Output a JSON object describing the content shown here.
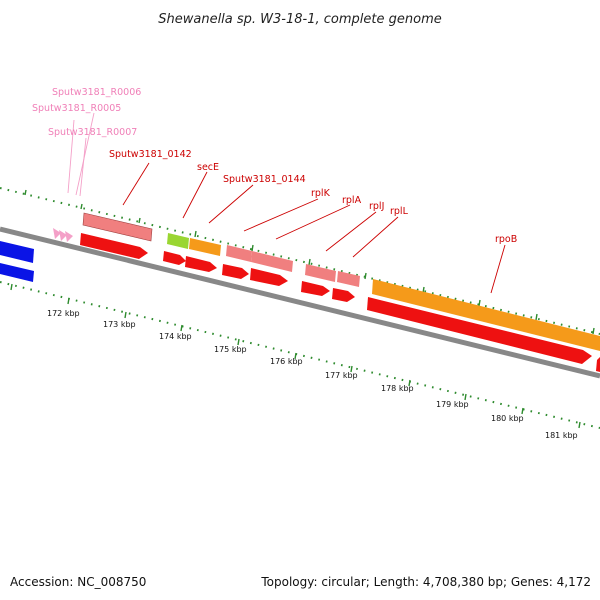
{
  "title": "Shewanella sp. W3-18-1, complete genome",
  "footer": {
    "accession": "Accession: NC_008750",
    "summary": "Topology: circular; Length: 4,708,380 bp; Genes: 4,172"
  },
  "scale_labels": [
    "172 kbp",
    "173 kbp",
    "174 kbp",
    "175 kbp",
    "176 kbp",
    "177 kbp",
    "178 kbp",
    "179 kbp",
    "180 kbp",
    "181 kbp"
  ],
  "gene_labels": {
    "r0006": "Sputw3181_R0006",
    "r0005": "Sputw3181_R0005",
    "r0007": "Sputw3181_R0007",
    "g0142": "Sputw3181_0142",
    "secE": "secE",
    "g0144": "Sputw3181_0144",
    "rplK": "rplK",
    "rplA": "rplA",
    "rplJ": "rplJ",
    "rplL": "rplL",
    "rpoB": "rpoB"
  },
  "colors": {
    "cds": "#ee1111",
    "gene_box": "#f07f7f",
    "orange_box": "#f59a1a",
    "green_box": "#9ad632",
    "trna": "#f4a0c8",
    "backbone": "#888888",
    "neighbor": "#0a14e6",
    "ticks": "#2e8b2e"
  }
}
